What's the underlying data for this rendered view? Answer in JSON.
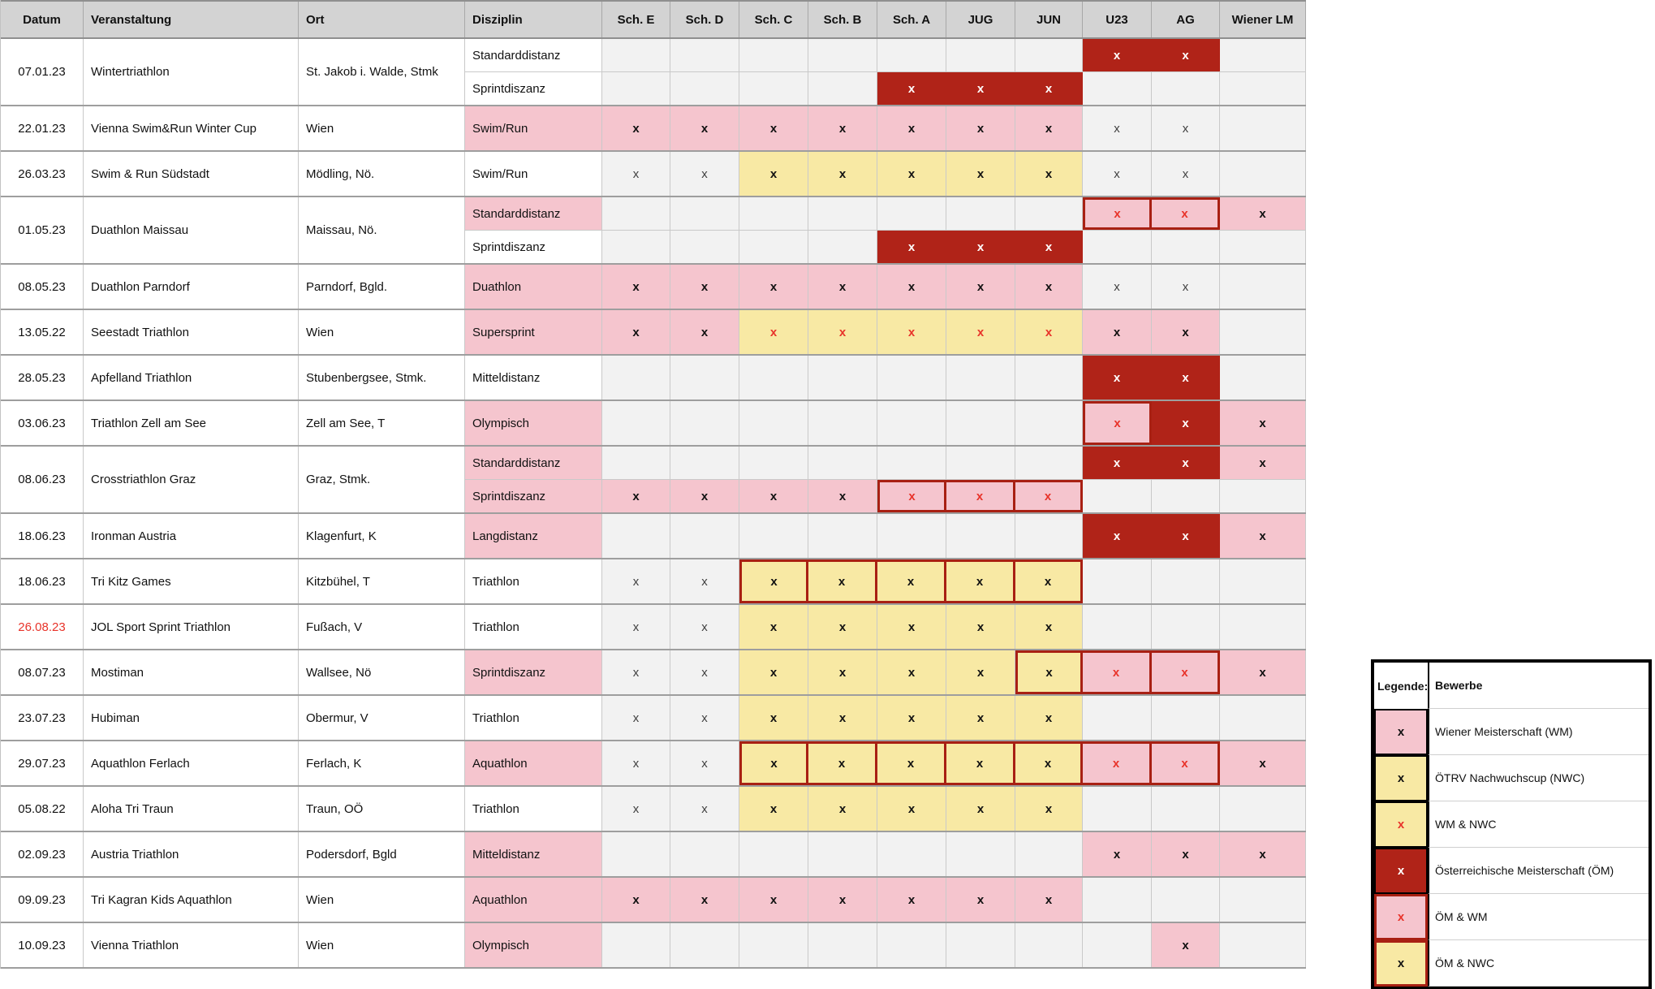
{
  "colors": {
    "header_grey": "#d3d3d3",
    "empty_cell_grey": "#f2f2f2",
    "pink_wm": "#f5c5ce",
    "yellow_nwc": "#f8e9a4",
    "dark_red_om": "#b02318",
    "red_mark": "#e8332a"
  },
  "table": {
    "columns": [
      {
        "key": "datum",
        "label": "Datum"
      },
      {
        "key": "veranstaltung",
        "label": "Veranstaltung"
      },
      {
        "key": "ort",
        "label": "Ort"
      },
      {
        "key": "disziplin",
        "label": "Disziplin"
      },
      {
        "key": "sch_e",
        "label": "Sch. E"
      },
      {
        "key": "sch_d",
        "label": "Sch. D"
      },
      {
        "key": "sch_c",
        "label": "Sch. C"
      },
      {
        "key": "sch_b",
        "label": "Sch. B"
      },
      {
        "key": "sch_a",
        "label": "Sch. A"
      },
      {
        "key": "jug",
        "label": "JUG"
      },
      {
        "key": "jun",
        "label": "JUN"
      },
      {
        "key": "u23",
        "label": "U23"
      },
      {
        "key": "ag",
        "label": "AG"
      },
      {
        "key": "wiener_lm",
        "label": "Wiener LM"
      }
    ],
    "cell_legend_key": {
      "x": "plain participation",
      "wm": "Wiener Meisterschaft (WM)",
      "nwc": "ÖTRV Nachwuchscup (NWC)",
      "wmnwc": "WM & NWC",
      "om": "Österreichische Meisterschaft (ÖM)",
      "omwm": "ÖM & WM",
      "omnwc": "ÖM & NWC"
    },
    "rows": [
      {
        "datum": "07.01.23",
        "datum_red": false,
        "veranstaltung": "Wintertriathlon",
        "ort": "St. Jakob i. Walde, Stmk",
        "sub_rows": [
          {
            "disziplin": "Standarddistanz",
            "disziplin_bg": "white",
            "cells": [
              "",
              "",
              "",
              "",
              "",
              "",
              "",
              "om",
              "om",
              ""
            ]
          },
          {
            "disziplin": "Sprintdiszanz",
            "disziplin_bg": "white",
            "cells": [
              "",
              "",
              "",
              "",
              "om",
              "om",
              "om",
              "",
              "",
              ""
            ]
          }
        ]
      },
      {
        "datum": "22.01.23",
        "datum_red": false,
        "veranstaltung": "Vienna Swim&Run Winter Cup",
        "ort": "Wien",
        "sub_rows": [
          {
            "disziplin": "Swim/Run",
            "disziplin_bg": "pink",
            "cells": [
              "wm",
              "wm",
              "wm",
              "wm",
              "wm",
              "wm",
              "wm",
              "x",
              "x",
              ""
            ]
          }
        ]
      },
      {
        "datum": "26.03.23",
        "datum_red": false,
        "veranstaltung": "Swim & Run Südstadt",
        "ort": "Mödling, Nö.",
        "sub_rows": [
          {
            "disziplin": "Swim/Run",
            "disziplin_bg": "white",
            "cells": [
              "x",
              "x",
              "nwc",
              "nwc",
              "nwc",
              "nwc",
              "nwc",
              "x",
              "x",
              ""
            ]
          }
        ]
      },
      {
        "datum": "01.05.23",
        "datum_red": false,
        "veranstaltung": "Duathlon Maissau",
        "ort": "Maissau, Nö.",
        "sub_rows": [
          {
            "disziplin": "Standarddistanz",
            "disziplin_bg": "pink",
            "cells": [
              "",
              "",
              "",
              "",
              "",
              "",
              "",
              "omwm",
              "omwm",
              "wm"
            ]
          },
          {
            "disziplin": "Sprintdiszanz",
            "disziplin_bg": "white",
            "cells": [
              "",
              "",
              "",
              "",
              "om",
              "om",
              "om",
              "",
              "",
              ""
            ]
          }
        ]
      },
      {
        "datum": "08.05.23",
        "datum_red": false,
        "veranstaltung": "Duathlon Parndorf",
        "ort": "Parndorf, Bgld.",
        "sub_rows": [
          {
            "disziplin": "Duathlon",
            "disziplin_bg": "pink",
            "cells": [
              "wm",
              "wm",
              "wm",
              "wm",
              "wm",
              "wm",
              "wm",
              "x",
              "x",
              ""
            ]
          }
        ]
      },
      {
        "datum": "13.05.22",
        "datum_red": false,
        "veranstaltung": "Seestadt Triathlon",
        "ort": "Wien",
        "sub_rows": [
          {
            "disziplin": "Supersprint",
            "disziplin_bg": "pink",
            "cells": [
              "wm",
              "wm",
              "wmnwc",
              "wmnwc",
              "wmnwc",
              "wmnwc",
              "wmnwc",
              "wm",
              "wm",
              ""
            ]
          }
        ]
      },
      {
        "datum": "28.05.23",
        "datum_red": false,
        "veranstaltung": "Apfelland Triathlon",
        "ort": "Stubenbergsee, Stmk.",
        "sub_rows": [
          {
            "disziplin": "Mitteldistanz",
            "disziplin_bg": "white",
            "cells": [
              "",
              "",
              "",
              "",
              "",
              "",
              "",
              "om",
              "om",
              ""
            ]
          }
        ]
      },
      {
        "datum": "03.06.23",
        "datum_red": false,
        "veranstaltung": "Triathlon Zell am See",
        "ort": "Zell am See, T",
        "sub_rows": [
          {
            "disziplin": "Olympisch",
            "disziplin_bg": "pink",
            "cells": [
              "",
              "",
              "",
              "",
              "",
              "",
              "",
              "omwm",
              "om",
              "wm"
            ]
          }
        ]
      },
      {
        "datum": "08.06.23",
        "datum_red": false,
        "veranstaltung": "Crosstriathlon Graz",
        "ort": "Graz, Stmk.",
        "sub_rows": [
          {
            "disziplin": "Standarddistanz",
            "disziplin_bg": "pink",
            "cells": [
              "",
              "",
              "",
              "",
              "",
              "",
              "",
              "om",
              "om",
              "wm"
            ]
          },
          {
            "disziplin": "Sprintdiszanz",
            "disziplin_bg": "pink",
            "cells": [
              "wm",
              "wm",
              "wm",
              "wm",
              "omwm",
              "omwm",
              "omwm",
              "",
              "",
              ""
            ]
          }
        ]
      },
      {
        "datum": "18.06.23",
        "datum_red": false,
        "veranstaltung": "Ironman Austria",
        "ort": "Klagenfurt, K",
        "sub_rows": [
          {
            "disziplin": "Langdistanz",
            "disziplin_bg": "pink",
            "cells": [
              "",
              "",
              "",
              "",
              "",
              "",
              "",
              "om",
              "om",
              "wm"
            ]
          }
        ]
      },
      {
        "datum": "18.06.23",
        "datum_red": false,
        "veranstaltung": "Tri Kitz Games",
        "ort": "Kitzbühel, T",
        "sub_rows": [
          {
            "disziplin": "Triathlon",
            "disziplin_bg": "white",
            "cells": [
              "x",
              "x",
              "omnwc",
              "omnwc",
              "omnwc",
              "omnwc",
              "omnwc",
              "",
              "",
              ""
            ]
          }
        ]
      },
      {
        "datum": "26.08.23",
        "datum_red": true,
        "veranstaltung": "JOL Sport Sprint Triathlon",
        "ort": "Fußach, V",
        "sub_rows": [
          {
            "disziplin": "Triathlon",
            "disziplin_bg": "white",
            "cells": [
              "x",
              "x",
              "nwc",
              "nwc",
              "nwc",
              "nwc",
              "nwc",
              "",
              "",
              ""
            ]
          }
        ]
      },
      {
        "datum": "08.07.23",
        "datum_red": false,
        "veranstaltung": "Mostiman",
        "ort": "Wallsee, Nö",
        "sub_rows": [
          {
            "disziplin": "Sprintdiszanz",
            "disziplin_bg": "pink",
            "cells": [
              "x",
              "x",
              "nwc",
              "nwc",
              "nwc",
              "nwc",
              "omnwc",
              "omwm",
              "omwm",
              "wm"
            ]
          }
        ]
      },
      {
        "datum": "23.07.23",
        "datum_red": false,
        "veranstaltung": "Hubiman",
        "ort": "Obermur, V",
        "sub_rows": [
          {
            "disziplin": "Triathlon",
            "disziplin_bg": "white",
            "cells": [
              "x",
              "x",
              "nwc",
              "nwc",
              "nwc",
              "nwc",
              "nwc",
              "",
              "",
              ""
            ]
          }
        ]
      },
      {
        "datum": "29.07.23",
        "datum_red": false,
        "veranstaltung": "Aquathlon Ferlach",
        "ort": "Ferlach, K",
        "sub_rows": [
          {
            "disziplin": "Aquathlon",
            "disziplin_bg": "pink",
            "cells": [
              "x",
              "x",
              "omnwc",
              "omnwc",
              "omnwc",
              "omnwc",
              "omnwc",
              "omwm",
              "omwm",
              "wm"
            ]
          }
        ]
      },
      {
        "datum": "05.08.22",
        "datum_red": false,
        "veranstaltung": "Aloha Tri Traun",
        "ort": "Traun, OÖ",
        "sub_rows": [
          {
            "disziplin": "Triathlon",
            "disziplin_bg": "white",
            "cells": [
              "x",
              "x",
              "nwc",
              "nwc",
              "nwc",
              "nwc",
              "nwc",
              "",
              "",
              ""
            ]
          }
        ]
      },
      {
        "datum": "02.09.23",
        "datum_red": false,
        "veranstaltung": "Austria Triathlon",
        "ort": "Podersdorf, Bgld",
        "sub_rows": [
          {
            "disziplin": "Mitteldistanz",
            "disziplin_bg": "pink",
            "cells": [
              "",
              "",
              "",
              "",
              "",
              "",
              "",
              "wm",
              "wm",
              "wm"
            ]
          }
        ]
      },
      {
        "datum": "09.09.23",
        "datum_red": false,
        "veranstaltung": "Tri Kagran Kids Aquathlon",
        "ort": "Wien",
        "sub_rows": [
          {
            "disziplin": "Aquathlon",
            "disziplin_bg": "pink",
            "cells": [
              "wm",
              "wm",
              "wm",
              "wm",
              "wm",
              "wm",
              "wm",
              "",
              "",
              ""
            ]
          }
        ]
      },
      {
        "datum": "10.09.23",
        "datum_red": false,
        "veranstaltung": "Vienna Triathlon",
        "ort": "Wien",
        "sub_rows": [
          {
            "disziplin": "Olympisch",
            "disziplin_bg": "pink",
            "cells": [
              "",
              "",
              "",
              "",
              "",
              "",
              "",
              "",
              "wm",
              ""
            ]
          }
        ]
      }
    ]
  },
  "legend": {
    "title": "Legende:",
    "header": "Bewerbe",
    "items": [
      {
        "swatch": "wm",
        "mark": "x",
        "label": "Wiener Meisterschaft (WM)"
      },
      {
        "swatch": "nwc",
        "mark": "x",
        "label": "ÖTRV Nachwuchscup (NWC)"
      },
      {
        "swatch": "wmnwc",
        "mark": "x",
        "label": "WM & NWC"
      },
      {
        "swatch": "om",
        "mark": "x",
        "label": "Österreichische Meisterschaft (ÖM)"
      },
      {
        "swatch": "omwm",
        "mark": "x",
        "label": "ÖM & WM"
      },
      {
        "swatch": "omnwc",
        "mark": "x",
        "label": "ÖM & NWC"
      }
    ]
  }
}
